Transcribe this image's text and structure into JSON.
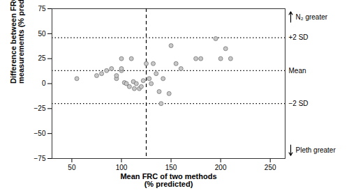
{
  "chart_data": {
    "type": "scatter",
    "x": [
      55,
      75,
      80,
      85,
      90,
      95,
      95,
      100,
      100,
      100,
      103,
      105,
      108,
      110,
      112,
      113,
      115,
      118,
      120,
      122,
      125,
      128,
      130,
      132,
      135,
      138,
      140,
      142,
      148,
      150,
      155,
      160,
      175,
      180,
      195,
      200,
      205,
      210
    ],
    "values": [
      5,
      8,
      10,
      13,
      15,
      5,
      8,
      13,
      15,
      25,
      1,
      0,
      -3,
      25,
      2,
      -5,
      0,
      -5,
      -3,
      3,
      20,
      5,
      0,
      20,
      10,
      -8,
      -20,
      5,
      -10,
      38,
      20,
      15,
      25,
      25,
      45,
      25,
      35,
      25
    ],
    "color": "#c8c8c8",
    "xlabel": "Mean FRC of two methods\n(% predicted)",
    "ylabel": "Difference between FRC\nmeasurements (% predicted)",
    "xlim": [
      30,
      265
    ],
    "ylim": [
      -75,
      75
    ],
    "xticks": [
      50,
      100,
      150,
      200,
      250
    ],
    "yticks": [
      -75,
      -50,
      -25,
      0,
      25,
      50,
      75
    ],
    "grid": false,
    "reference_lines": [
      {
        "value": 46,
        "label": "+2 SD",
        "line_style": "dotted"
      },
      {
        "value": 13,
        "label": "Mean",
        "line_style": "dotted"
      },
      {
        "value": -20,
        "label": "−2 SD",
        "line_style": "dotted"
      }
    ],
    "vertical_line": {
      "value": 125,
      "line_style": "dashed"
    },
    "annotations": [
      {
        "text": "N₂ greater",
        "arrow": "up"
      },
      {
        "text": "Pleth greater",
        "arrow": "down"
      }
    ]
  }
}
